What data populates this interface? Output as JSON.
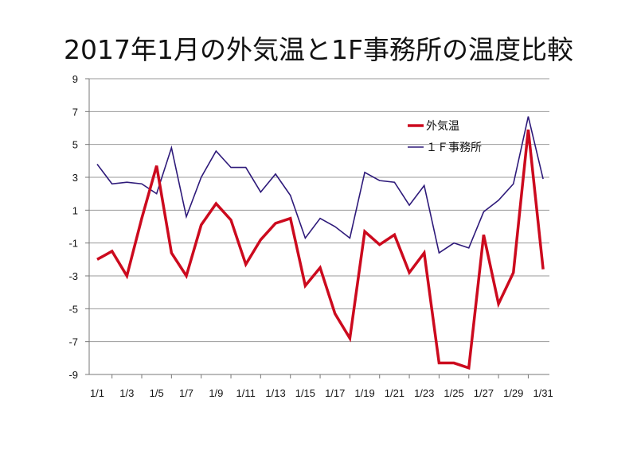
{
  "chart_data": {
    "type": "line",
    "title": "2017年1月の外気温と1F事務所の温度比較",
    "xlabel": "",
    "ylabel": "",
    "ylim": [
      -9,
      9
    ],
    "yticks": [
      9,
      7,
      5,
      3,
      1,
      -1,
      -3,
      -5,
      -7,
      -9
    ],
    "x": [
      "1/1",
      "1/2",
      "1/3",
      "1/4",
      "1/5",
      "1/6",
      "1/7",
      "1/8",
      "1/9",
      "1/10",
      "1/11",
      "1/12",
      "1/13",
      "1/14",
      "1/15",
      "1/16",
      "1/17",
      "1/18",
      "1/19",
      "1/20",
      "1/21",
      "1/22",
      "1/23",
      "1/24",
      "1/25",
      "1/26",
      "1/27",
      "1/28",
      "1/29",
      "1/30",
      "1/31"
    ],
    "xtick_labels": [
      "1/1",
      "1/3",
      "1/5",
      "1/7",
      "1/9",
      "1/11",
      "1/13",
      "1/15",
      "1/17",
      "1/19",
      "1/21",
      "1/23",
      "1/25",
      "1/27",
      "1/29",
      "1/31"
    ],
    "grid": true,
    "legend_position": "top-right",
    "series": [
      {
        "name": "外気温",
        "color": "#cc0a1e",
        "values": [
          -2.0,
          -1.5,
          -3.0,
          0.5,
          3.7,
          -1.6,
          -3.0,
          0.1,
          1.4,
          0.4,
          -2.3,
          -0.8,
          0.2,
          0.5,
          -3.6,
          -2.5,
          -5.3,
          -6.8,
          -0.3,
          -1.1,
          -0.5,
          -2.8,
          -1.6,
          -8.3,
          -8.3,
          -8.6,
          -0.5,
          -4.7,
          -2.8,
          5.9,
          -2.6
        ]
      },
      {
        "name": "１Ｆ事務所",
        "color": "#2e1a7a",
        "values": [
          3.8,
          2.6,
          2.7,
          2.6,
          2.0,
          4.8,
          0.6,
          3.0,
          4.6,
          3.6,
          3.6,
          2.1,
          3.2,
          1.9,
          -0.7,
          0.5,
          0.0,
          -0.7,
          3.3,
          2.8,
          2.7,
          1.3,
          2.5,
          -1.6,
          -1.0,
          -1.3,
          0.9,
          1.6,
          2.6,
          6.7,
          2.9
        ]
      }
    ]
  }
}
